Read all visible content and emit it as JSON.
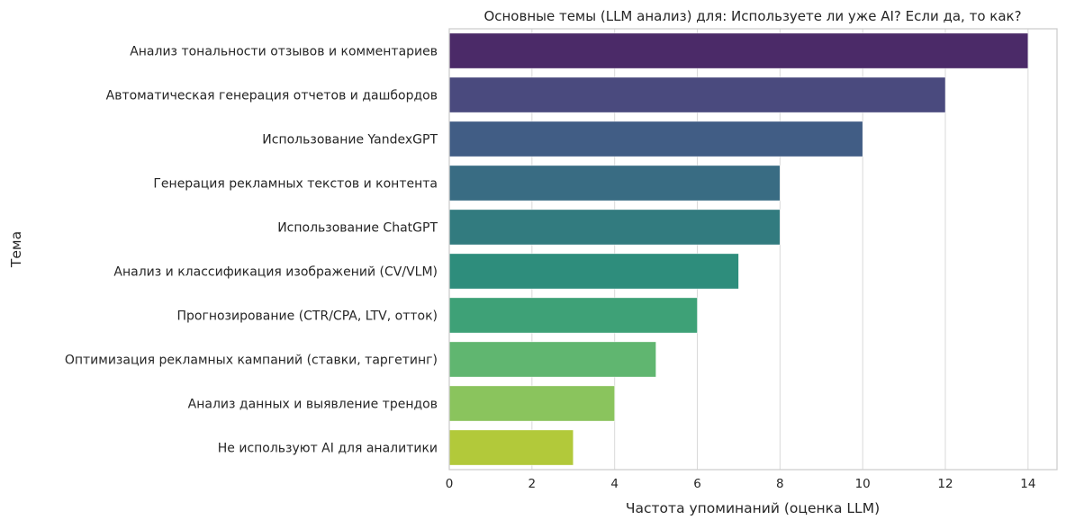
{
  "chart_data": {
    "type": "bar",
    "orientation": "horizontal",
    "title": "Основные темы (LLM анализ) для: Используете ли уже AI? Если да, то как?",
    "xlabel": "Частота упоминаний (оценка LLM)",
    "ylabel": "Тема",
    "xlim": [
      0,
      14.7
    ],
    "xticks": [
      0,
      2,
      4,
      6,
      8,
      10,
      12,
      14
    ],
    "grid": "vertical",
    "palette": "viridis",
    "categories": [
      "Анализ тональности отзывов и комментариев",
      "Автоматическая генерация отчетов и дашбордов",
      "Использование YandexGPT",
      "Генерация рекламных текстов и контента",
      "Использование ChatGPT",
      "Анализ и классификация изображений (CV/VLM)",
      "Прогнозирование (CTR/CPA, LTV, отток)",
      "Оптимизация рекламных кампаний (ставки, таргетинг)",
      "Анализ данных и выявление трендов",
      "Не используют AI для аналитики"
    ],
    "values": [
      14,
      12,
      10,
      8,
      8,
      7,
      6,
      5,
      4,
      3
    ],
    "colors": [
      "#4b2a68",
      "#4a4a7e",
      "#415d85",
      "#396c83",
      "#327b7f",
      "#2e8d7c",
      "#3ea177",
      "#60b670",
      "#8ac45d",
      "#b2c93a"
    ]
  }
}
